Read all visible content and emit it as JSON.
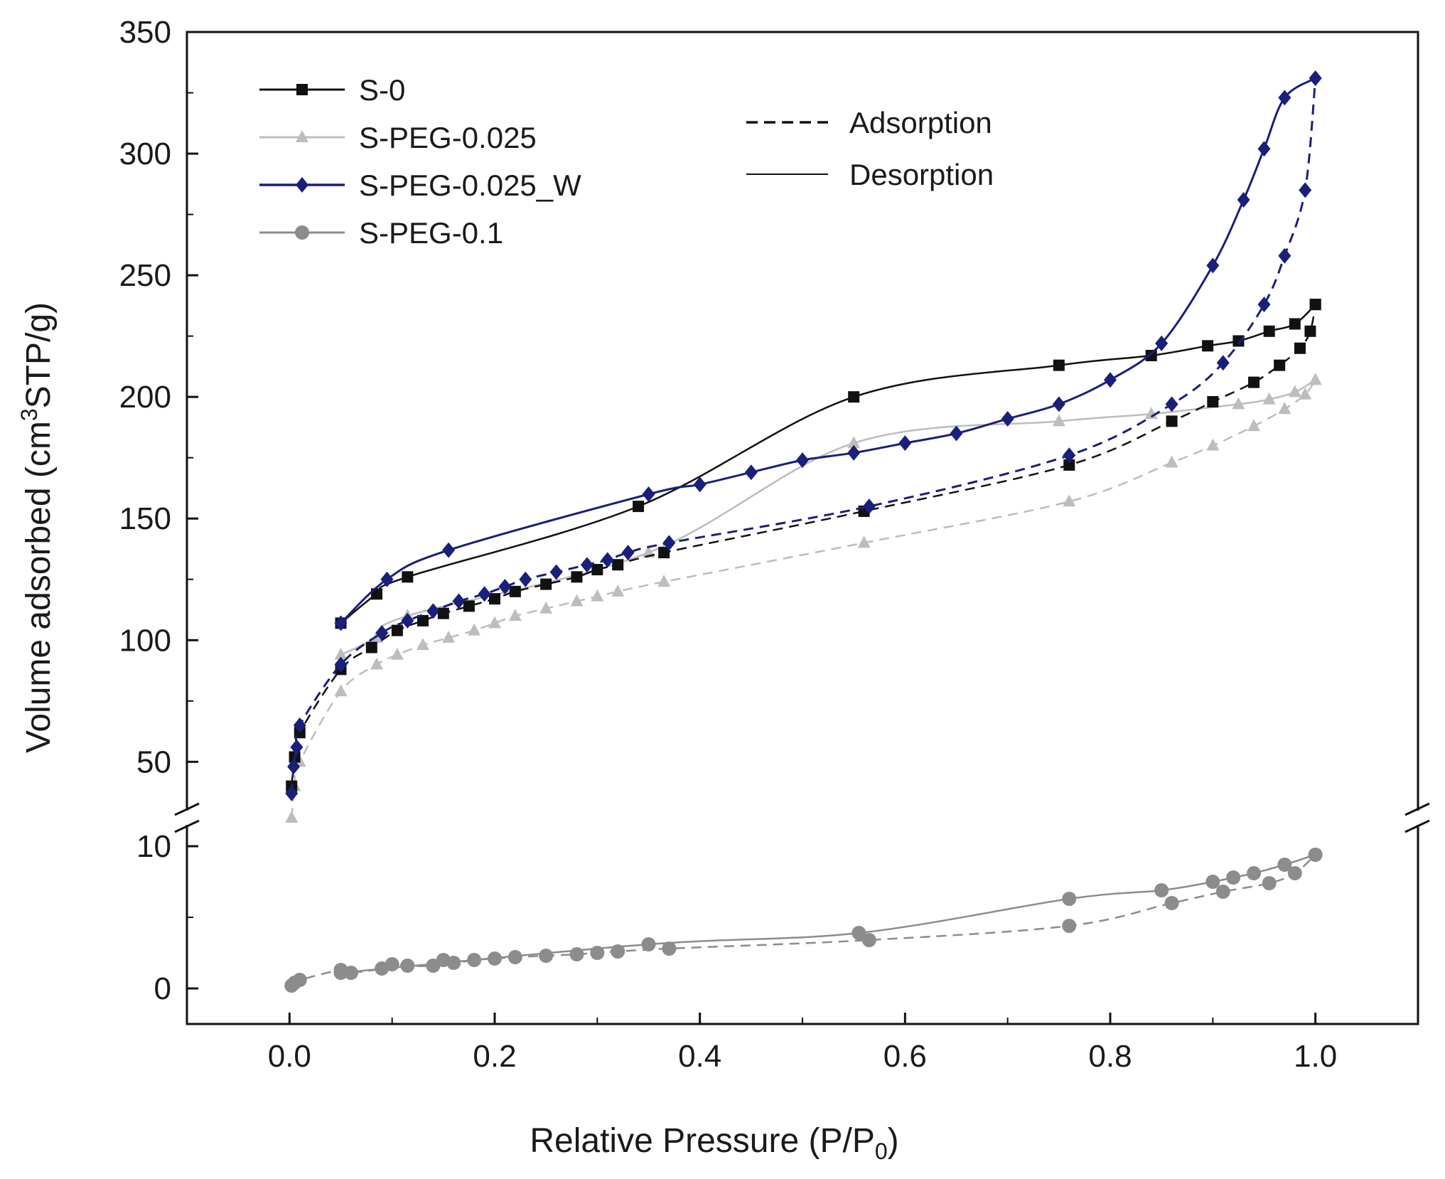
{
  "chart_data": {
    "type": "line",
    "xlabel": "Relative Pressure (P/P",
    "xlabel_sub": "0",
    "xlabel_tail": ")",
    "ylabel": "Volume adsorbed (cm",
    "ylabel_sup": "3",
    "ylabel_tail": "STP/g)",
    "xlim": [
      -0.1,
      1.1
    ],
    "x_ticks": [
      {
        "value": 0.0,
        "label": "0.0"
      },
      {
        "value": 0.2,
        "label": "0.2"
      },
      {
        "value": 0.4,
        "label": "0.4"
      },
      {
        "value": 0.6,
        "label": "0.6"
      },
      {
        "value": 0.8,
        "label": "0.8"
      },
      {
        "value": 1.0,
        "label": "1.0"
      }
    ],
    "y_upper": {
      "ylim": [
        27,
        350
      ],
      "ticks": [
        {
          "value": 50,
          "label": "50"
        },
        {
          "value": 100,
          "label": "100"
        },
        {
          "value": 150,
          "label": "150"
        },
        {
          "value": 200,
          "label": "200"
        },
        {
          "value": 250,
          "label": "250"
        },
        {
          "value": 300,
          "label": "300"
        },
        {
          "value": 350,
          "label": "350"
        }
      ]
    },
    "y_lower": {
      "ylim": [
        -2.5,
        12
      ],
      "ticks": [
        {
          "value": 0,
          "label": "0"
        },
        {
          "value": 10,
          "label": "10"
        }
      ]
    },
    "axis_break": true,
    "grid": false,
    "legend_position": "top-left",
    "linestyle_legend": [
      {
        "label": "Adsorption",
        "style": "dashed"
      },
      {
        "label": "Desorption",
        "style": "solid"
      }
    ],
    "series": [
      {
        "name": "S-0",
        "panel": "upper",
        "marker": "square",
        "color": "#111111",
        "adsorption": [
          [
            0.002,
            40
          ],
          [
            0.005,
            52
          ],
          [
            0.01,
            62
          ],
          [
            0.05,
            88
          ],
          [
            0.08,
            97
          ],
          [
            0.105,
            104
          ],
          [
            0.13,
            108
          ],
          [
            0.15,
            111
          ],
          [
            0.175,
            114
          ],
          [
            0.2,
            117
          ],
          [
            0.22,
            120
          ],
          [
            0.25,
            123
          ],
          [
            0.28,
            126
          ],
          [
            0.3,
            129
          ],
          [
            0.32,
            131
          ],
          [
            0.365,
            136
          ],
          [
            0.56,
            153
          ],
          [
            0.76,
            172
          ],
          [
            0.86,
            190
          ],
          [
            0.9,
            198
          ],
          [
            0.94,
            206
          ],
          [
            0.965,
            213
          ],
          [
            0.985,
            220
          ],
          [
            0.995,
            227
          ],
          [
            1.0,
            238
          ]
        ],
        "desorption": [
          [
            1.0,
            238
          ],
          [
            0.98,
            230
          ],
          [
            0.955,
            227
          ],
          [
            0.925,
            223
          ],
          [
            0.895,
            221
          ],
          [
            0.84,
            217
          ],
          [
            0.75,
            213
          ],
          [
            0.55,
            200
          ],
          [
            0.34,
            155
          ],
          [
            0.115,
            126
          ],
          [
            0.085,
            119
          ],
          [
            0.05,
            107
          ]
        ]
      },
      {
        "name": "S-PEG-0.025",
        "panel": "upper",
        "marker": "triangle",
        "color": "#bdbdbd",
        "adsorption": [
          [
            0.002,
            27
          ],
          [
            0.005,
            40
          ],
          [
            0.01,
            50
          ],
          [
            0.05,
            79
          ],
          [
            0.085,
            90
          ],
          [
            0.105,
            94
          ],
          [
            0.13,
            98
          ],
          [
            0.155,
            101
          ],
          [
            0.18,
            104
          ],
          [
            0.2,
            107
          ],
          [
            0.22,
            110
          ],
          [
            0.25,
            113
          ],
          [
            0.28,
            116
          ],
          [
            0.3,
            118
          ],
          [
            0.32,
            120
          ],
          [
            0.365,
            124
          ],
          [
            0.56,
            140
          ],
          [
            0.76,
            157
          ],
          [
            0.86,
            173
          ],
          [
            0.9,
            180
          ],
          [
            0.94,
            188
          ],
          [
            0.97,
            195
          ],
          [
            0.99,
            201
          ],
          [
            1.0,
            207
          ]
        ],
        "desorption": [
          [
            1.0,
            207
          ],
          [
            0.98,
            202
          ],
          [
            0.955,
            199
          ],
          [
            0.925,
            197
          ],
          [
            0.84,
            193
          ],
          [
            0.75,
            190
          ],
          [
            0.55,
            181
          ],
          [
            0.35,
            136
          ],
          [
            0.115,
            110
          ],
          [
            0.085,
            101
          ],
          [
            0.05,
            94
          ]
        ]
      },
      {
        "name": "S-PEG-0.025_W",
        "panel": "upper",
        "marker": "diamond",
        "color": "#1a1f7a",
        "adsorption": [
          [
            0.002,
            37
          ],
          [
            0.004,
            48
          ],
          [
            0.007,
            56
          ],
          [
            0.01,
            65
          ],
          [
            0.05,
            90
          ],
          [
            0.09,
            103
          ],
          [
            0.115,
            108
          ],
          [
            0.14,
            112
          ],
          [
            0.165,
            116
          ],
          [
            0.19,
            119
          ],
          [
            0.21,
            122
          ],
          [
            0.23,
            125
          ],
          [
            0.26,
            128
          ],
          [
            0.29,
            131
          ],
          [
            0.31,
            133
          ],
          [
            0.33,
            136
          ],
          [
            0.37,
            140
          ],
          [
            0.565,
            155
          ],
          [
            0.76,
            176
          ],
          [
            0.86,
            197
          ],
          [
            0.91,
            214
          ],
          [
            0.95,
            238
          ],
          [
            0.97,
            258
          ],
          [
            0.99,
            285
          ],
          [
            1.0,
            331
          ]
        ],
        "desorption": [
          [
            1.0,
            331
          ],
          [
            0.97,
            323
          ],
          [
            0.95,
            302
          ],
          [
            0.93,
            281
          ],
          [
            0.9,
            254
          ],
          [
            0.85,
            222
          ],
          [
            0.8,
            207
          ],
          [
            0.75,
            197
          ],
          [
            0.7,
            191
          ],
          [
            0.65,
            185
          ],
          [
            0.6,
            181
          ],
          [
            0.55,
            177
          ],
          [
            0.5,
            174
          ],
          [
            0.45,
            169
          ],
          [
            0.4,
            164
          ],
          [
            0.35,
            160
          ],
          [
            0.155,
            137
          ],
          [
            0.095,
            125
          ],
          [
            0.05,
            107
          ]
        ]
      },
      {
        "name": "S-PEG-0.1",
        "panel": "lower",
        "marker": "circle",
        "color": "#8c8c8c",
        "adsorption": [
          [
            0.002,
            0.2
          ],
          [
            0.005,
            0.4
          ],
          [
            0.01,
            0.6
          ],
          [
            0.05,
            1.3
          ],
          [
            0.06,
            1.1
          ],
          [
            0.09,
            1.4
          ],
          [
            0.1,
            1.7
          ],
          [
            0.115,
            1.6
          ],
          [
            0.14,
            1.6
          ],
          [
            0.15,
            2.0
          ],
          [
            0.16,
            1.8
          ],
          [
            0.18,
            2.0
          ],
          [
            0.2,
            2.1
          ],
          [
            0.22,
            2.2
          ],
          [
            0.25,
            2.3
          ],
          [
            0.28,
            2.4
          ],
          [
            0.3,
            2.5
          ],
          [
            0.32,
            2.6
          ],
          [
            0.37,
            2.8
          ],
          [
            0.565,
            3.4
          ],
          [
            0.76,
            4.4
          ],
          [
            0.86,
            6.0
          ],
          [
            0.91,
            6.8
          ],
          [
            0.955,
            7.4
          ],
          [
            0.98,
            8.1
          ],
          [
            1.0,
            9.4
          ]
        ],
        "desorption": [
          [
            1.0,
            9.4
          ],
          [
            0.97,
            8.7
          ],
          [
            0.94,
            8.1
          ],
          [
            0.92,
            7.8
          ],
          [
            0.9,
            7.5
          ],
          [
            0.85,
            6.9
          ],
          [
            0.76,
            6.3
          ],
          [
            0.555,
            3.9
          ],
          [
            0.35,
            3.1
          ],
          [
            0.05,
            1.1
          ]
        ]
      }
    ]
  }
}
